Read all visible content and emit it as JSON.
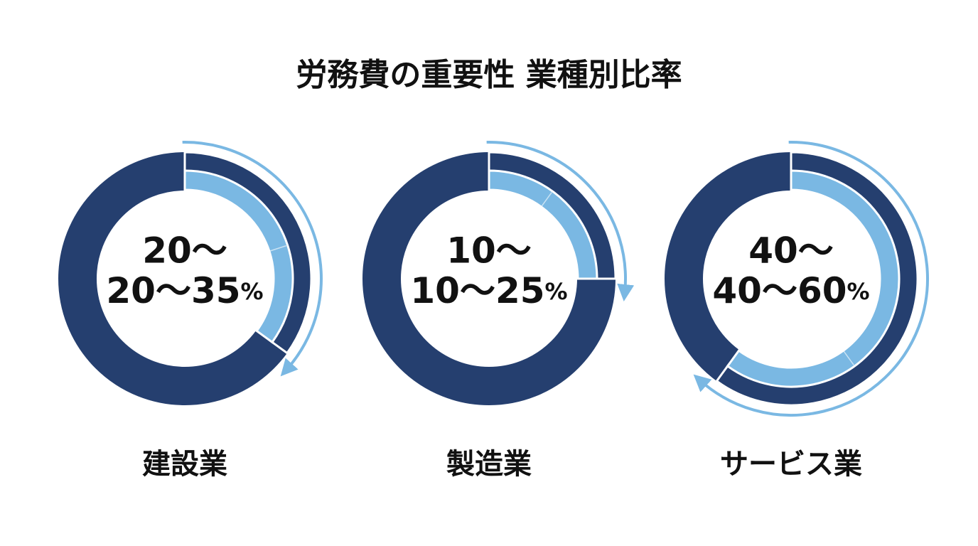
{
  "chart_data": {
    "type": "donut-range",
    "title": "労務費の重要性 業種別比率",
    "panels": [
      {
        "name": "建設業",
        "low": 20,
        "high": 35,
        "line1": "20〜",
        "line2": "20〜35",
        "unit": "%"
      },
      {
        "name": "製造業",
        "low": 10,
        "high": 25,
        "line1": "10〜",
        "line2": "10〜25",
        "unit": "%"
      },
      {
        "name": "サービス業",
        "low": 40,
        "high": 60,
        "line1": "40〜",
        "line2": "40〜60",
        "unit": "%"
      }
    ],
    "ylim": [
      0,
      100
    ],
    "dark_color": "#253f6f",
    "light_color": "#7ab8e3"
  }
}
